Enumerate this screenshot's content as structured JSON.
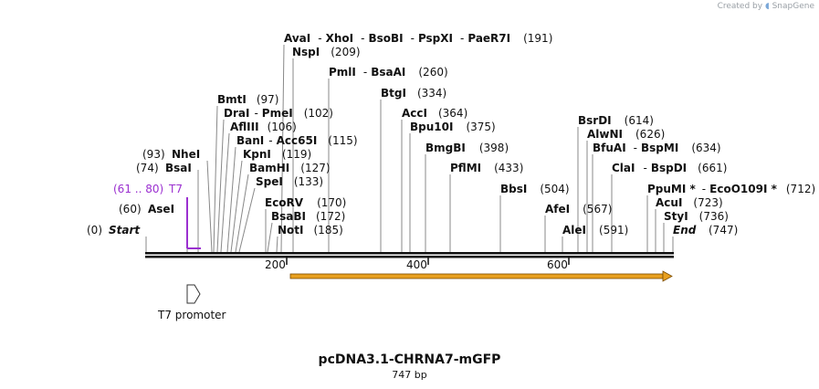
{
  "credit": "Created by",
  "credit_brand": "SnapGene",
  "map": {
    "title": "pcDNA3.1-CHRNA7-mGFP",
    "length_label": "747 bp",
    "bp_length": 747,
    "start": {
      "name": "Start",
      "pos": "(0)"
    },
    "end": {
      "name": "End",
      "pos": "(747)"
    },
    "ticks": [
      {
        "bp": 200,
        "label": "200"
      },
      {
        "bp": 400,
        "label": "400"
      },
      {
        "bp": 600,
        "label": "600"
      }
    ],
    "t7_primer": {
      "name": "T7",
      "range": "(61 .. 80)",
      "color": "#9b30d0"
    },
    "t7_promoter_label": "T7 promoter",
    "orf_color": "#e8a020"
  },
  "enzymes": {
    "left": [
      {
        "name": "BmtI",
        "pos": "(97)"
      },
      {
        "name": "DraI",
        "name2": "PmeI",
        "pos": "(102)"
      },
      {
        "name": "AflIII",
        "pos": "(106)"
      },
      {
        "name": "BanI",
        "name2": "Acc65I",
        "pos": "(115)"
      },
      {
        "name": "KpnI",
        "pos": "(119)"
      },
      {
        "name": "BamHI",
        "pos": "(127)"
      },
      {
        "name": "SpeI",
        "pos": "(133)"
      },
      {
        "name": "EcoRV",
        "pos": "(170)"
      },
      {
        "name": "BsaBI",
        "pos": "(172)"
      },
      {
        "name": "NotI",
        "pos": "(185)"
      }
    ],
    "left_prefixed": [
      {
        "pos": "(93)",
        "name": "NheI"
      },
      {
        "pos": "(74)",
        "name": "BsaI"
      },
      {
        "pos": "(60)",
        "name": "AseI"
      }
    ],
    "top": [
      {
        "name": "AvaI",
        "name2": "XhoI",
        "name3": "BsoBI",
        "name4": "PspXI",
        "name5": "PaeR7I",
        "pos": "(191)"
      },
      {
        "name": "NspI",
        "pos": "(209)"
      },
      {
        "name": "PmlI",
        "name2": "BsaAI",
        "pos": "(260)"
      },
      {
        "name": "BtgI",
        "pos": "(334)"
      },
      {
        "name": "AccI",
        "pos": "(364)"
      },
      {
        "name": "Bpu10I",
        "pos": "(375)"
      },
      {
        "name": "BmgBI",
        "pos": "(398)"
      },
      {
        "name": "PflMI",
        "pos": "(433)"
      },
      {
        "name": "BbsI",
        "pos": "(504)"
      },
      {
        "name": "AfeI",
        "pos": "(567)"
      },
      {
        "name": "AleI",
        "pos": "(591)"
      }
    ],
    "right": [
      {
        "name": "BsrDI",
        "pos": "(614)"
      },
      {
        "name": "AlwNI",
        "pos": "(626)"
      },
      {
        "name": "BfuAI",
        "name2": "BspMI",
        "pos": "(634)"
      },
      {
        "name": "ClaI",
        "name2": "BspDI",
        "pos": "(661)"
      },
      {
        "name": "PpuMI *",
        "name2": "EcoO109I *",
        "pos": "(712)"
      },
      {
        "name": "AcuI",
        "pos": "(723)"
      },
      {
        "name": "StyI",
        "pos": "(736)"
      }
    ]
  }
}
